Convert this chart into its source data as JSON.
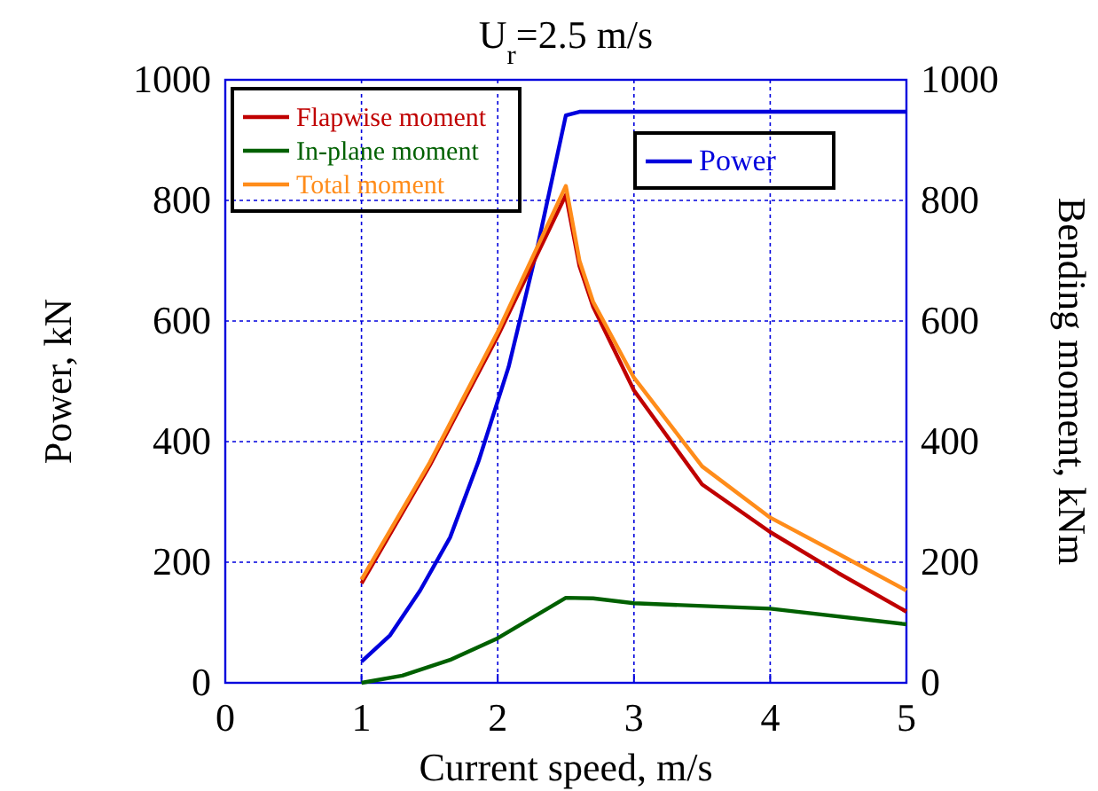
{
  "chart_data": {
    "type": "line",
    "title": "U$_{r}$=2.5 m/s",
    "xlabel": "Current speed, m/s",
    "ylabel": "Power, kN",
    "y2label": "Bending moment, kNm",
    "xlim": [
      0,
      5
    ],
    "xticks": [
      0,
      1,
      2,
      3,
      4,
      5
    ],
    "ylim": [
      0,
      1000
    ],
    "yticks": [
      0,
      200,
      400,
      600,
      800,
      1000
    ],
    "y2lim": [
      0,
      1000
    ],
    "y2ticks": [
      0,
      200,
      400,
      600,
      800,
      1000
    ],
    "grid": true,
    "legend": "top",
    "line_style": "solid",
    "marker": "none",
    "series": [
      {
        "name": "Power",
        "color": "#0000dd",
        "axis": "y",
        "x": [
          1,
          1.21,
          1.43,
          1.65,
          1.86,
          2.08,
          2.29,
          2.5,
          2.6,
          3,
          4,
          5
        ],
        "values": [
          35,
          79,
          153,
          241,
          368,
          524,
          721,
          941,
          947,
          947,
          947,
          947
        ]
      },
      {
        "name": "Flapwise moment",
        "color": "#c00000",
        "axis": "y2",
        "x": [
          1,
          1.5,
          2,
          2.5,
          2.6,
          2.7,
          3,
          3.5,
          4,
          4.5,
          5
        ],
        "values": [
          165,
          360,
          575,
          809,
          691,
          624,
          485,
          329,
          250,
          182,
          118
        ]
      },
      {
        "name": "In-plane moment",
        "color": "#006000",
        "axis": "y2",
        "x": [
          1,
          1.3,
          1.65,
          2,
          2.5,
          2.7,
          3,
          4,
          5
        ],
        "values": [
          0,
          12,
          38,
          74,
          141,
          140,
          132,
          123,
          97
        ]
      },
      {
        "name": "Total moment",
        "color": "#ff8c1a",
        "axis": "y2",
        "x": [
          1,
          1.5,
          2,
          2.5,
          2.6,
          2.7,
          3,
          3.5,
          4,
          4.5,
          5
        ],
        "values": [
          171,
          365,
          582,
          824,
          700,
          632,
          506,
          359,
          274,
          214,
          153
        ]
      }
    ]
  }
}
